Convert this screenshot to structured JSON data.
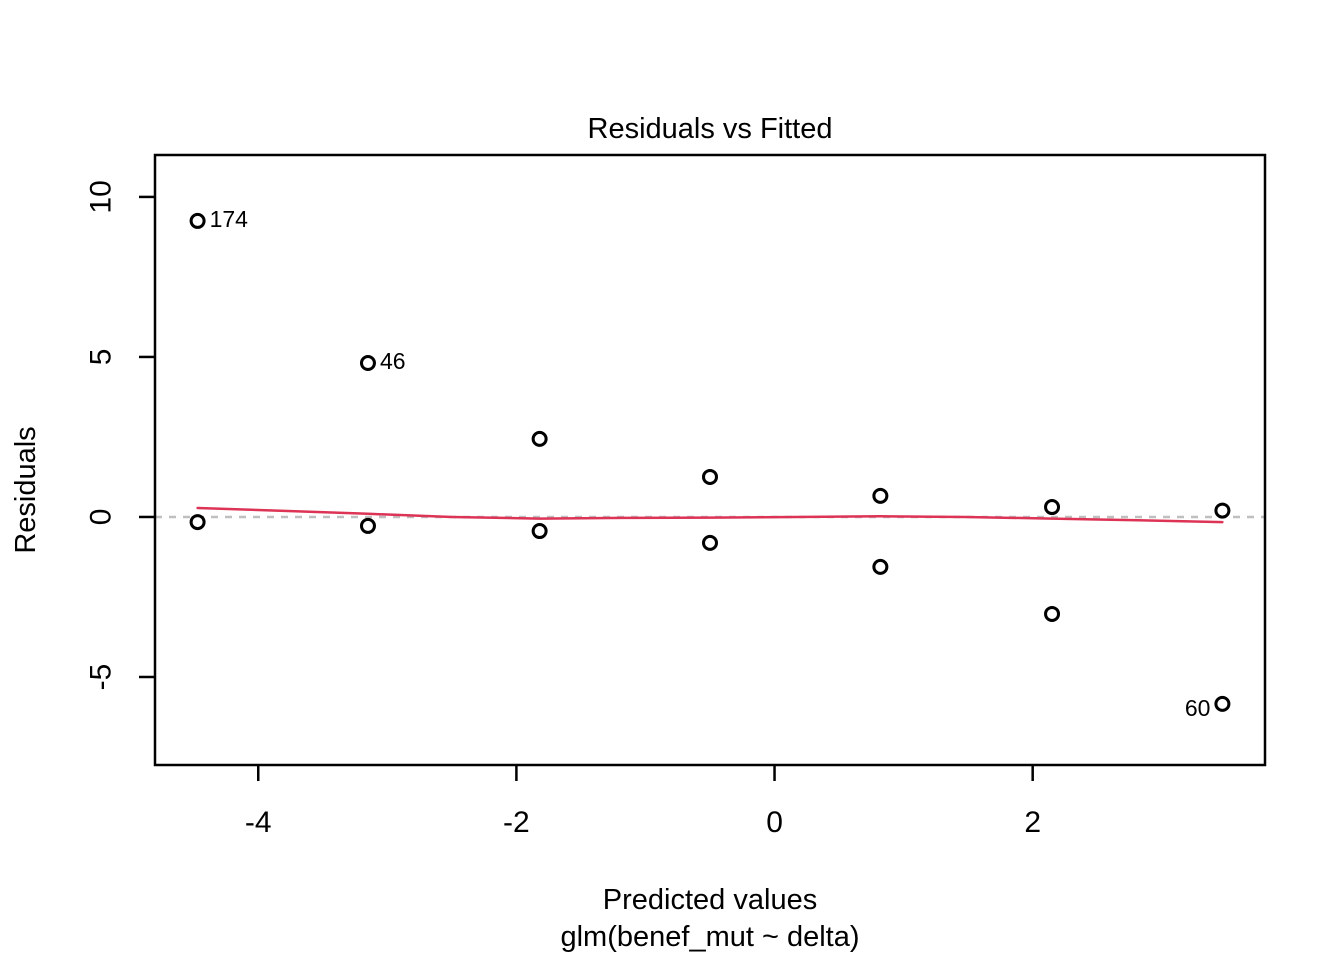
{
  "chart_data": {
    "type": "scatter",
    "title": "Residuals vs Fitted",
    "xlabel": "Predicted values",
    "xlabel_sub": "glm(benef_mut ~ delta)",
    "ylabel": "Residuals",
    "x_ticks": [
      -4,
      -2,
      0,
      2
    ],
    "y_ticks": [
      10,
      5,
      0,
      -5
    ],
    "xlim": [
      -4.8,
      3.8
    ],
    "ylim": [
      -7.75,
      11.31
    ],
    "grid": false,
    "legend": "none",
    "zero_line": {
      "y": 0,
      "style": "dashed",
      "color": "#bfbfbf"
    },
    "point_style": {
      "shape": "open-circle",
      "stroke": "#000000",
      "fill": "#ffffff"
    },
    "points": [
      {
        "x": -4.47,
        "y": 9.25,
        "label": "174",
        "label_side": "right"
      },
      {
        "x": -4.47,
        "y": -0.16
      },
      {
        "x": -3.15,
        "y": 4.81,
        "label": "46",
        "label_side": "right"
      },
      {
        "x": -3.15,
        "y": -0.28
      },
      {
        "x": -1.82,
        "y": 2.44
      },
      {
        "x": -1.82,
        "y": -0.44
      },
      {
        "x": -0.5,
        "y": 1.25
      },
      {
        "x": -0.5,
        "y": -0.81
      },
      {
        "x": 0.82,
        "y": 0.66
      },
      {
        "x": 0.82,
        "y": -1.56
      },
      {
        "x": 2.15,
        "y": 0.31
      },
      {
        "x": 2.15,
        "y": -3.03
      },
      {
        "x": 3.47,
        "y": 0.2
      },
      {
        "x": 3.47,
        "y": -5.84,
        "label": "60",
        "label_side": "left"
      }
    ],
    "smooth_line": {
      "name": "loess-smoother",
      "color": "#dd3355",
      "points": [
        {
          "x": -4.47,
          "y": 0.28
        },
        {
          "x": -3.8,
          "y": 0.19
        },
        {
          "x": -3.15,
          "y": 0.1
        },
        {
          "x": -2.5,
          "y": 0.0
        },
        {
          "x": -1.82,
          "y": -0.05
        },
        {
          "x": -1.16,
          "y": -0.03
        },
        {
          "x": -0.5,
          "y": -0.02
        },
        {
          "x": 0.16,
          "y": 0.0
        },
        {
          "x": 0.82,
          "y": 0.02
        },
        {
          "x": 1.48,
          "y": 0.0
        },
        {
          "x": 2.15,
          "y": -0.05
        },
        {
          "x": 2.81,
          "y": -0.1
        },
        {
          "x": 3.47,
          "y": -0.16
        }
      ]
    }
  },
  "colors": {
    "background": "#ffffff",
    "axis": "#000000",
    "smoother": "#dd3355",
    "zero_line": "#bfbfbf"
  }
}
